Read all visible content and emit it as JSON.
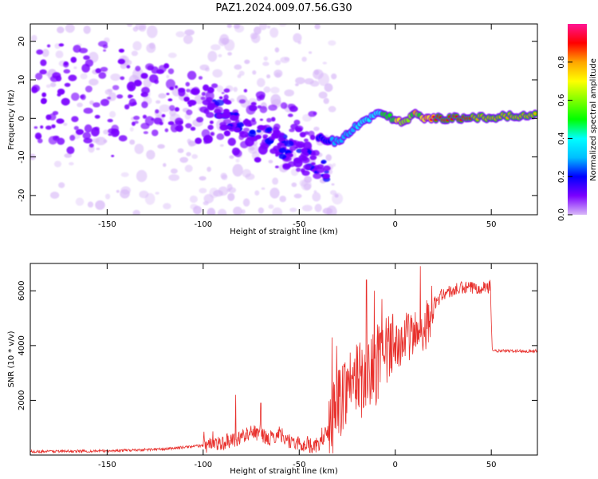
{
  "figure": {
    "title": "PAZ1.2024.009.07.56.G30"
  },
  "chart_data": [
    {
      "type": "heatmap",
      "title": "PAZ1.2024.009.07.56.G30",
      "xlabel": "Height of straight line (km)",
      "ylabel": "Frequency (Hz)",
      "xlim": [
        -190,
        74
      ],
      "ylim": [
        -25,
        24.5
      ],
      "xticks": [
        -150,
        -100,
        -50,
        0,
        50
      ],
      "yticks": [
        -20,
        -10,
        0,
        10,
        20
      ],
      "ridge": {
        "x": [
          -40,
          -30,
          -20,
          -10,
          0,
          5,
          10,
          15,
          20,
          30,
          40,
          50,
          60,
          74
        ],
        "y": [
          -5,
          -6,
          -2,
          1,
          0,
          -1,
          2,
          0,
          0,
          0,
          0,
          0.3,
          0.5,
          1
        ]
      },
      "colorbar": {
        "label": "Normalized spectral amplitude",
        "ticks": [
          0.0,
          0.2,
          0.4,
          0.6,
          0.8
        ],
        "colormap": [
          "#d8b8f8",
          "#7a00ff",
          "#0000ff",
          "#00bfff",
          "#00ffff",
          "#00ff00",
          "#80ff00",
          "#ffff00",
          "#ffa500",
          "#ff0000",
          "#ff1493"
        ]
      }
    },
    {
      "type": "line",
      "xlabel": "Height of straight line (km)",
      "ylabel": "SNR (10 * v/v)",
      "xlim": [
        -190,
        74
      ],
      "ylim": [
        0,
        7000
      ],
      "xticks": [
        -150,
        -100,
        -50,
        0,
        50
      ],
      "yticks": [
        2000,
        4000,
        6000
      ],
      "color": "#e8302c",
      "envelope": {
        "x": [
          -190,
          -150,
          -120,
          -100,
          -90,
          -80,
          -75,
          -70,
          -65,
          -60,
          -55,
          -50,
          -45,
          -40,
          -35,
          -30,
          -25,
          -20,
          -15,
          -10,
          -5,
          0,
          5,
          10,
          15,
          20,
          25,
          30,
          35,
          40,
          45,
          49.5,
          50.5,
          60,
          74
        ],
        "y": [
          130,
          150,
          220,
          350,
          450,
          650,
          900,
          700,
          600,
          800,
          500,
          400,
          350,
          350,
          900,
          1800,
          2600,
          2800,
          2700,
          3200,
          3600,
          4000,
          4300,
          4400,
          4600,
          5500,
          5900,
          6000,
          6100,
          6100,
          6150,
          6150,
          3800,
          3800,
          3800
        ]
      },
      "spikes": [
        {
          "x": -83,
          "y": 2200
        },
        {
          "x": -70,
          "y": 1900
        },
        {
          "x": -33,
          "y": 4300
        },
        {
          "x": -15,
          "y": 6400
        },
        {
          "x": -11,
          "y": 6000
        },
        {
          "x": -7,
          "y": 5700
        },
        {
          "x": 13,
          "y": 6900
        }
      ]
    }
  ]
}
